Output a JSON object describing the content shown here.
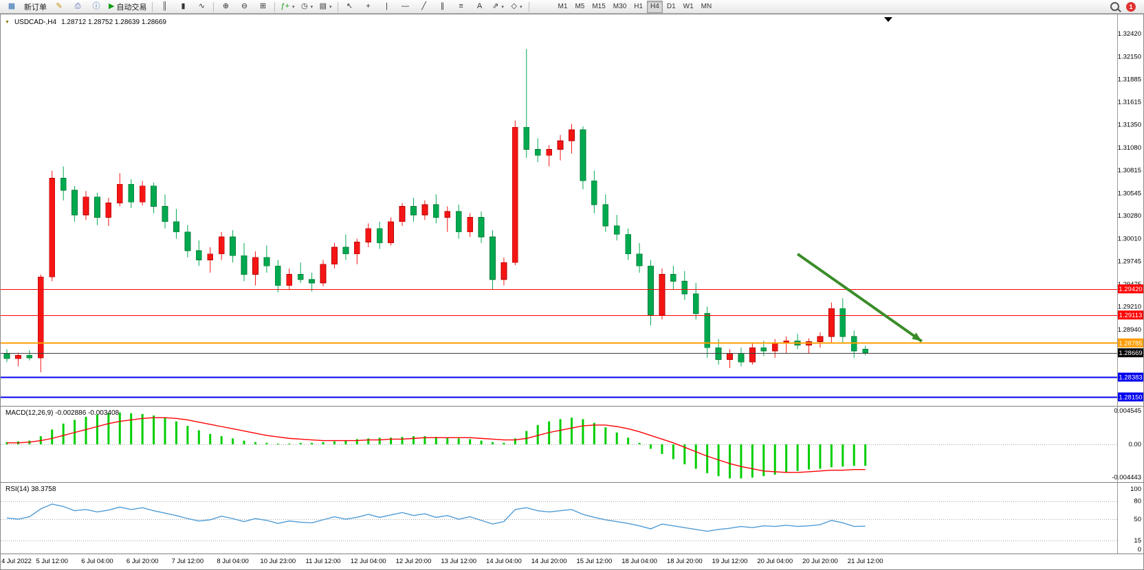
{
  "app": {
    "notification_count": "1"
  },
  "toolbar": {
    "caret_glyph": "▾",
    "items": [
      {
        "name": "new-chart",
        "glyph": "▦",
        "color": "#2b6cb0"
      },
      {
        "name": "new-order",
        "label": "新订单"
      },
      {
        "name": "metaeditor",
        "glyph": "✎",
        "color": "#c98a00"
      },
      {
        "name": "print",
        "glyph": "⎙",
        "color": "#4a5fb0"
      },
      {
        "name": "data-window",
        "glyph": "ⓘ",
        "color": "#2b6cb0"
      },
      {
        "name": "auto-trading",
        "glyph": "▶",
        "label": "自动交易",
        "color": "#169c16"
      },
      {
        "sep": true
      },
      {
        "name": "bar-chart",
        "glyph": "║"
      },
      {
        "name": "candlestick-chart",
        "glyph": "▮"
      },
      {
        "name": "line-chart",
        "glyph": "∿"
      },
      {
        "sep": true
      },
      {
        "name": "zoom-in",
        "glyph": "⊕"
      },
      {
        "name": "zoom-out",
        "glyph": "⊖"
      },
      {
        "name": "tile-windows",
        "glyph": "⊞"
      },
      {
        "sep": true
      },
      {
        "name": "indicators",
        "glyph": "ƒ+",
        "color": "#169c16",
        "caret": true
      },
      {
        "name": "periods",
        "glyph": "◷",
        "caret": true
      },
      {
        "name": "templates",
        "glyph": "▤",
        "caret": true
      },
      {
        "sep": true
      },
      {
        "name": "cursor",
        "glyph": "↖"
      },
      {
        "name": "crosshair",
        "glyph": "+"
      },
      {
        "name": "vertical-line",
        "glyph": "|"
      },
      {
        "name": "horizontal-line",
        "glyph": "—"
      },
      {
        "name": "trendline",
        "glyph": "╱"
      },
      {
        "name": "equidistant-channel",
        "glyph": "∥"
      },
      {
        "name": "fibonacci",
        "glyph": "≡"
      },
      {
        "name": "text-tool",
        "glyph": "A"
      },
      {
        "name": "arrows-tool",
        "glyph": "⇗",
        "caret": true
      },
      {
        "name": "shapes",
        "glyph": "◇",
        "caret": true
      },
      {
        "sep": true
      }
    ],
    "timeframes": [
      {
        "label": "M1"
      },
      {
        "label": "M5"
      },
      {
        "label": "M15"
      },
      {
        "label": "M30"
      },
      {
        "label": "H1"
      },
      {
        "label": "H4",
        "active": true
      },
      {
        "label": "D1"
      },
      {
        "label": "W1"
      },
      {
        "label": "MN"
      }
    ]
  },
  "chart": {
    "marker_glyph": "▼",
    "title_symbol": "USDCAD-,H4",
    "title_ohlc": "1.28712 1.28752 1.28639 1.28669",
    "colors": {
      "bull": "#f51515",
      "bull_edge": "#b30000",
      "bear": "#00a94f",
      "bear_edge": "#007a36",
      "macd_hist": "#00ce00",
      "macd_signal": "#ff0000",
      "rsi_line": "#4f9bd5",
      "arrow": "#3a8c28"
    },
    "price_axis_labels": [
      "1.32420",
      "1.32150",
      "1.31885",
      "1.31615",
      "1.31350",
      "1.31080",
      "1.30815",
      "1.30545",
      "1.30280",
      "1.30010",
      "1.29745",
      "1.29475",
      "1.29210",
      "1.28940"
    ],
    "hlines": [
      {
        "label": "1.29420",
        "price": 1.2942,
        "color": "#ff0000",
        "width": 1
      },
      {
        "label": "1.29113",
        "price": 1.29113,
        "color": "#ff0000",
        "width": 1
      },
      {
        "label": "1.28785",
        "price": 1.28785,
        "color": "#ff9c00",
        "width": 2
      },
      {
        "label": "1.28669",
        "price": 1.28669,
        "color": "#3c3c3c",
        "width": 1,
        "tag": "#000000"
      },
      {
        "label": "1.28383",
        "price": 1.28383,
        "color": "#0000ee",
        "width": 2
      },
      {
        "label": "1.28150",
        "price": 1.2815,
        "color": "#0000ee",
        "width": 2
      }
    ],
    "time_axis_labels": [
      "4 Jul 2022",
      "5 Jul 12:00",
      "6 Jul 04:00",
      "6 Jul 20:00",
      "7 Jul 12:00",
      "8 Jul 04:00",
      "10 Jul 23:00",
      "11 Jul 12:00",
      "12 Jul 04:00",
      "12 Jul 20:00",
      "13 Jul 12:00",
      "14 Jul 04:00",
      "14 Jul 20:00",
      "15 Jul 12:00",
      "18 Jul 04:00",
      "18 Jul 20:00",
      "19 Jul 12:00",
      "20 Jul 04:00",
      "20 Jul 20:00",
      "21 Jul 12:00"
    ]
  },
  "chart_data": {
    "type": "candlestick",
    "symbol": "USDCAD",
    "timeframe": "H4",
    "price_range": {
      "top": 1.3242,
      "bottom": 1.2815
    },
    "candles": [
      [
        1.2866,
        1.2871,
        1.2856,
        1.286
      ],
      [
        1.286,
        1.2867,
        1.2851,
        1.2864
      ],
      [
        1.2864,
        1.287,
        1.2858,
        1.2861
      ],
      [
        1.2861,
        1.2959,
        1.2844,
        1.2956
      ],
      [
        1.2956,
        1.3081,
        1.2951,
        1.3072
      ],
      [
        1.3072,
        1.3086,
        1.3046,
        1.3058
      ],
      [
        1.3058,
        1.3063,
        1.3021,
        1.3029
      ],
      [
        1.3029,
        1.3057,
        1.3023,
        1.305
      ],
      [
        1.305,
        1.3055,
        1.3017,
        1.3026
      ],
      [
        1.3026,
        1.3049,
        1.3016,
        1.3043
      ],
      [
        1.3043,
        1.3078,
        1.3039,
        1.3065
      ],
      [
        1.3065,
        1.3071,
        1.3037,
        1.3044
      ],
      [
        1.3044,
        1.3069,
        1.304,
        1.3063
      ],
      [
        1.3063,
        1.3067,
        1.3031,
        1.3039
      ],
      [
        1.3039,
        1.3053,
        1.3013,
        1.3021
      ],
      [
        1.3021,
        1.3036,
        1.3001,
        1.3009
      ],
      [
        1.3009,
        1.3017,
        1.2979,
        1.2987
      ],
      [
        1.2987,
        1.2999,
        1.2969,
        1.2976
      ],
      [
        1.2976,
        1.2991,
        1.2961,
        1.2983
      ],
      [
        1.2983,
        1.3009,
        1.2976,
        1.3003
      ],
      [
        1.3003,
        1.3011,
        1.2973,
        1.2981
      ],
      [
        1.2981,
        1.2996,
        1.2951,
        1.2959
      ],
      [
        1.2959,
        1.2986,
        1.2946,
        1.2979
      ],
      [
        1.2979,
        1.2993,
        1.2961,
        1.2969
      ],
      [
        1.2969,
        1.2976,
        1.2938,
        1.2946
      ],
      [
        1.2946,
        1.2966,
        1.2941,
        1.2959
      ],
      [
        1.2959,
        1.2973,
        1.2949,
        1.2953
      ],
      [
        1.2953,
        1.2961,
        1.2939,
        1.2949
      ],
      [
        1.2949,
        1.2976,
        1.2945,
        1.2971
      ],
      [
        1.2971,
        1.2996,
        1.2966,
        1.2991
      ],
      [
        1.2991,
        1.3006,
        1.2976,
        1.2983
      ],
      [
        1.2983,
        1.3001,
        1.2971,
        1.2997
      ],
      [
        1.2997,
        1.3019,
        1.2991,
        1.3013
      ],
      [
        1.3013,
        1.3021,
        1.2989,
        1.2996
      ],
      [
        1.2996,
        1.3026,
        1.2993,
        1.3021
      ],
      [
        1.3021,
        1.3043,
        1.3016,
        1.3039
      ],
      [
        1.3039,
        1.3049,
        1.3021,
        1.3029
      ],
      [
        1.3029,
        1.3046,
        1.3023,
        1.3041
      ],
      [
        1.3041,
        1.3053,
        1.3019,
        1.3026
      ],
      [
        1.3026,
        1.3039,
        1.3009,
        1.3033
      ],
      [
        1.3033,
        1.3041,
        1.3001,
        1.3009
      ],
      [
        1.3009,
        1.3031,
        1.3003,
        1.3026
      ],
      [
        1.3026,
        1.3033,
        1.2996,
        1.3003
      ],
      [
        1.3003,
        1.3011,
        1.2941,
        1.2953
      ],
      [
        1.2953,
        1.2979,
        1.2946,
        1.2973
      ],
      [
        1.2973,
        1.314,
        1.297,
        1.3132
      ],
      [
        1.3132,
        1.3224,
        1.3096,
        1.3106
      ],
      [
        1.3106,
        1.3119,
        1.3091,
        1.3099
      ],
      [
        1.3099,
        1.3111,
        1.3086,
        1.3106
      ],
      [
        1.3106,
        1.3123,
        1.3093,
        1.3116
      ],
      [
        1.3116,
        1.3136,
        1.3101,
        1.3129
      ],
      [
        1.3129,
        1.3133,
        1.3059,
        1.3069
      ],
      [
        1.3069,
        1.3081,
        1.3031,
        1.3041
      ],
      [
        1.3041,
        1.3053,
        1.3009,
        1.3016
      ],
      [
        1.3016,
        1.3029,
        1.2999,
        1.3006
      ],
      [
        1.3006,
        1.3013,
        1.2976,
        1.2983
      ],
      [
        1.2983,
        1.2996,
        1.2961,
        1.2969
      ],
      [
        1.2969,
        1.2976,
        1.2899,
        1.2911
      ],
      [
        1.2911,
        1.2966,
        1.2906,
        1.2959
      ],
      [
        1.2959,
        1.2969,
        1.2941,
        1.2951
      ],
      [
        1.2951,
        1.2963,
        1.2929,
        1.2936
      ],
      [
        1.2936,
        1.2949,
        1.2906,
        1.2913
      ],
      [
        1.2913,
        1.2921,
        1.2861,
        1.2873
      ],
      [
        1.2873,
        1.2883,
        1.2853,
        1.2859
      ],
      [
        1.2859,
        1.2871,
        1.2849,
        1.2866
      ],
      [
        1.2866,
        1.2873,
        1.2851,
        1.2856
      ],
      [
        1.2856,
        1.2879,
        1.2853,
        1.2873
      ],
      [
        1.2873,
        1.2881,
        1.2863,
        1.2869
      ],
      [
        1.2869,
        1.2883,
        1.2861,
        1.2879
      ],
      [
        1.2879,
        1.2886,
        1.2866,
        1.2881
      ],
      [
        1.2881,
        1.2889,
        1.2871,
        1.2876
      ],
      [
        1.2876,
        1.2884,
        1.2866,
        1.288
      ],
      [
        1.288,
        1.2891,
        1.2873,
        1.2886
      ],
      [
        1.2886,
        1.2926,
        1.2879,
        1.2919
      ],
      [
        1.2919,
        1.2931,
        1.2879,
        1.2886
      ],
      [
        1.2886,
        1.2893,
        1.2861,
        1.2869
      ],
      [
        1.28712,
        1.28752,
        1.28639,
        1.28669
      ]
    ],
    "trend_arrow": {
      "from": {
        "bar": 70,
        "price": 1.2983
      },
      "to": {
        "bar": 81,
        "price": 1.28804
      }
    },
    "indicators": {
      "macd": {
        "label": "MACD(12,26,9)",
        "value": "-0.002886",
        "signal_value": "-0.003408",
        "axis": [
          "0.004545",
          "0.00",
          "-0.004443"
        ],
        "histogram": [
          0.0003,
          0.0004,
          0.0005,
          0.0011,
          0.002,
          0.0028,
          0.0033,
          0.0037,
          0.004,
          0.0042,
          0.0043,
          0.0042,
          0.0041,
          0.0039,
          0.0036,
          0.0031,
          0.0025,
          0.0019,
          0.0014,
          0.0011,
          0.0008,
          0.0005,
          0.0003,
          0.0002,
          0.0001,
          0.0001,
          0.0002,
          0.0002,
          0.0003,
          0.0004,
          0.0005,
          0.0007,
          0.0008,
          0.0009,
          0.0009,
          0.001,
          0.0011,
          0.0011,
          0.001,
          0.0009,
          0.0008,
          0.0007,
          0.0005,
          0.0003,
          0.0002,
          0.0008,
          0.0018,
          0.0026,
          0.0031,
          0.0034,
          0.0036,
          0.0034,
          0.0029,
          0.0023,
          0.0016,
          0.0009,
          0.0002,
          -0.0006,
          -0.0013,
          -0.002,
          -0.0027,
          -0.0033,
          -0.0039,
          -0.0043,
          -0.0046,
          -0.0046,
          -0.0045,
          -0.0043,
          -0.0041,
          -0.0038,
          -0.0036,
          -0.0034,
          -0.0033,
          -0.0031,
          -0.003,
          -0.0029,
          -0.0029
        ],
        "signal": [
          0.0002,
          0.0002,
          0.0003,
          0.0005,
          0.0008,
          0.0012,
          0.0016,
          0.002,
          0.0024,
          0.0028,
          0.0031,
          0.0033,
          0.0035,
          0.0036,
          0.0036,
          0.0035,
          0.0033,
          0.003,
          0.0027,
          0.0024,
          0.0021,
          0.0018,
          0.0015,
          0.0012,
          0.001,
          0.0008,
          0.0007,
          0.0006,
          0.0005,
          0.0005,
          0.0005,
          0.0005,
          0.0006,
          0.0006,
          0.0007,
          0.0007,
          0.0008,
          0.0009,
          0.0009,
          0.0009,
          0.0009,
          0.0009,
          0.0008,
          0.0007,
          0.0006,
          0.0006,
          0.0008,
          0.0012,
          0.0016,
          0.0019,
          0.0022,
          0.0025,
          0.0026,
          0.0026,
          0.0024,
          0.0021,
          0.0017,
          0.0012,
          0.0007,
          0.0002,
          -0.0004,
          -0.001,
          -0.0016,
          -0.0021,
          -0.0026,
          -0.003,
          -0.0033,
          -0.0036,
          -0.0037,
          -0.0038,
          -0.0038,
          -0.0037,
          -0.0036,
          -0.0035,
          -0.0035,
          -0.0034,
          -0.0034
        ]
      },
      "rsi": {
        "label": "RSI(14)",
        "value": "38.3758",
        "axis": [
          "100",
          "80",
          "50",
          "15",
          "0"
        ],
        "levels": [
          80,
          50,
          15
        ],
        "values": [
          52,
          50,
          54,
          67,
          75,
          71,
          64,
          66,
          62,
          65,
          70,
          66,
          69,
          64,
          60,
          56,
          51,
          47,
          49,
          55,
          51,
          46,
          51,
          48,
          43,
          47,
          45,
          44,
          49,
          54,
          50,
          53,
          58,
          53,
          57,
          61,
          56,
          59,
          53,
          56,
          50,
          54,
          48,
          42,
          46,
          66,
          69,
          64,
          62,
          64,
          66,
          58,
          53,
          49,
          46,
          43,
          39,
          34,
          42,
          39,
          36,
          33,
          30,
          33,
          35,
          38,
          36,
          39,
          38,
          40,
          38,
          39,
          41,
          48,
          44,
          38,
          38.4
        ]
      }
    }
  }
}
